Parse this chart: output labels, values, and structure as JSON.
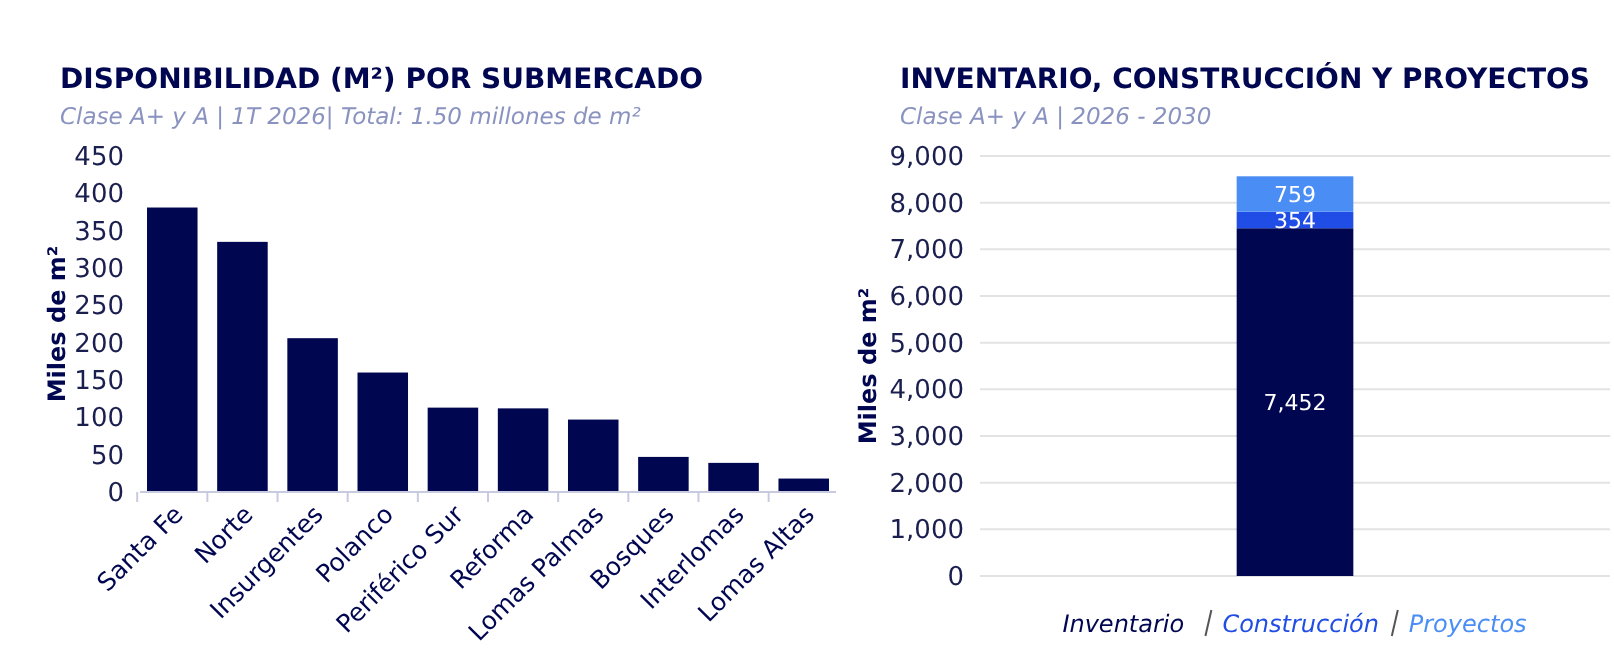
{
  "chart_data": [
    {
      "type": "bar",
      "title": "DISPONIBILIDAD (M²) POR SUBMERCADO",
      "subtitle": "Clase A+ y A | 1T 2026| Total: 1.50 millones de m²",
      "ylabel": "Miles de m²",
      "categories": [
        "Santa Fe",
        "Norte",
        "Insurgentes",
        "Polanco",
        "Periférico Sur",
        "Reforma",
        "Lomas Palmas",
        "Bosques",
        "Interlomas",
        "Lomas Altas"
      ],
      "values": [
        381,
        335,
        206,
        160,
        113,
        112,
        97,
        47,
        39,
        18
      ],
      "color": "#000650",
      "ylim": [
        0,
        450
      ],
      "yticks": [
        0,
        50,
        100,
        150,
        200,
        250,
        300,
        350,
        400,
        450
      ],
      "grid": false
    },
    {
      "type": "bar",
      "title": "INVENTARIO, CONSTRUCCIÓN Y PROYECTOS",
      "subtitle": "Clase A+ y A | 2026 - 2030",
      "ylabel": "Miles de m²",
      "categories": [
        null
      ],
      "stacked": true,
      "series": [
        {
          "name": "Inventario",
          "color": "#000650",
          "values": [
            7452
          ],
          "value_labels": [
            "7,452"
          ]
        },
        {
          "name": "Construcción",
          "color": "#1f4de6",
          "values": [
            354
          ],
          "value_labels": [
            "354"
          ]
        },
        {
          "name": "Proyectos",
          "color": "#4a8ef5",
          "values": [
            759
          ],
          "value_labels": [
            "759"
          ]
        }
      ],
      "ylim": [
        0,
        9000
      ],
      "yticks": [
        {
          "value": 0,
          "label": "0"
        },
        {
          "value": 1000,
          "label": "1,000"
        },
        {
          "value": 2000,
          "label": "2,000"
        },
        {
          "value": 3000,
          "label": "3,000"
        },
        {
          "value": 4000,
          "label": "4,000"
        },
        {
          "value": 5000,
          "label": "5,000"
        },
        {
          "value": 6000,
          "label": "6,000"
        },
        {
          "value": 7000,
          "label": "7,000"
        },
        {
          "value": 8000,
          "label": "8,000"
        },
        {
          "value": 9000,
          "label": "9,000"
        }
      ],
      "grid": "y",
      "legend": "bottom"
    }
  ]
}
